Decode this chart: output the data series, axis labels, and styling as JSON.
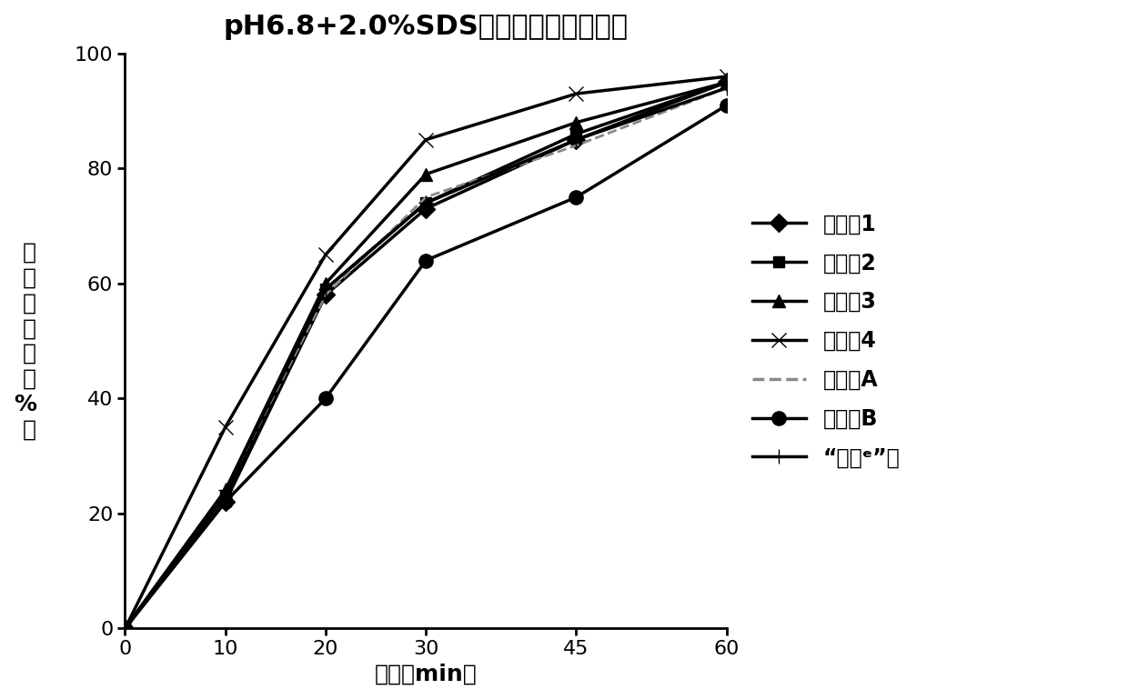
{
  "title": "pH6.8+2.0%SDS溶液中溶出曲线对比",
  "xlabel": "时间（min）",
  "ylabel": "累\n积\n溶\n出\n度\n（\n%\n）",
  "x": [
    0,
    10,
    20,
    30,
    45,
    60
  ],
  "series": {
    "实施例1": [
      0,
      22,
      58,
      73,
      85,
      95
    ],
    "实施例2": [
      0,
      23,
      59,
      74,
      86,
      95
    ],
    "实施例3": [
      0,
      24,
      60,
      79,
      88,
      95
    ],
    "实施例4": [
      0,
      35,
      65,
      85,
      93,
      96
    ],
    "试验例A": [
      0,
      24,
      58,
      75,
      84,
      94
    ],
    "试验例B": [
      0,
      22,
      40,
      64,
      75,
      91
    ],
    "“泽珂ᵉ”片": [
      0,
      24,
      59,
      74,
      85,
      94
    ]
  },
  "markers": [
    "D",
    "s",
    "^",
    "x",
    "None",
    "o",
    "+"
  ],
  "linestyles": [
    "-",
    "-",
    "-",
    "-",
    "--",
    "-",
    "-"
  ],
  "linewidths": [
    2.5,
    2.5,
    2.5,
    2.5,
    2.0,
    2.5,
    2.5
  ],
  "markersizes": [
    10,
    9,
    10,
    12,
    6,
    11,
    11
  ],
  "colors": [
    "#000000",
    "#000000",
    "#000000",
    "#000000",
    "#888888",
    "#000000",
    "#000000"
  ],
  "ylim": [
    0,
    100
  ],
  "xlim": [
    0,
    60
  ],
  "yticks": [
    0,
    20,
    40,
    60,
    80,
    100
  ],
  "xticks": [
    0,
    10,
    20,
    30,
    45,
    60
  ],
  "background_color": "#ffffff",
  "title_fontsize": 22,
  "label_fontsize": 18,
  "tick_fontsize": 16,
  "legend_fontsize": 17
}
